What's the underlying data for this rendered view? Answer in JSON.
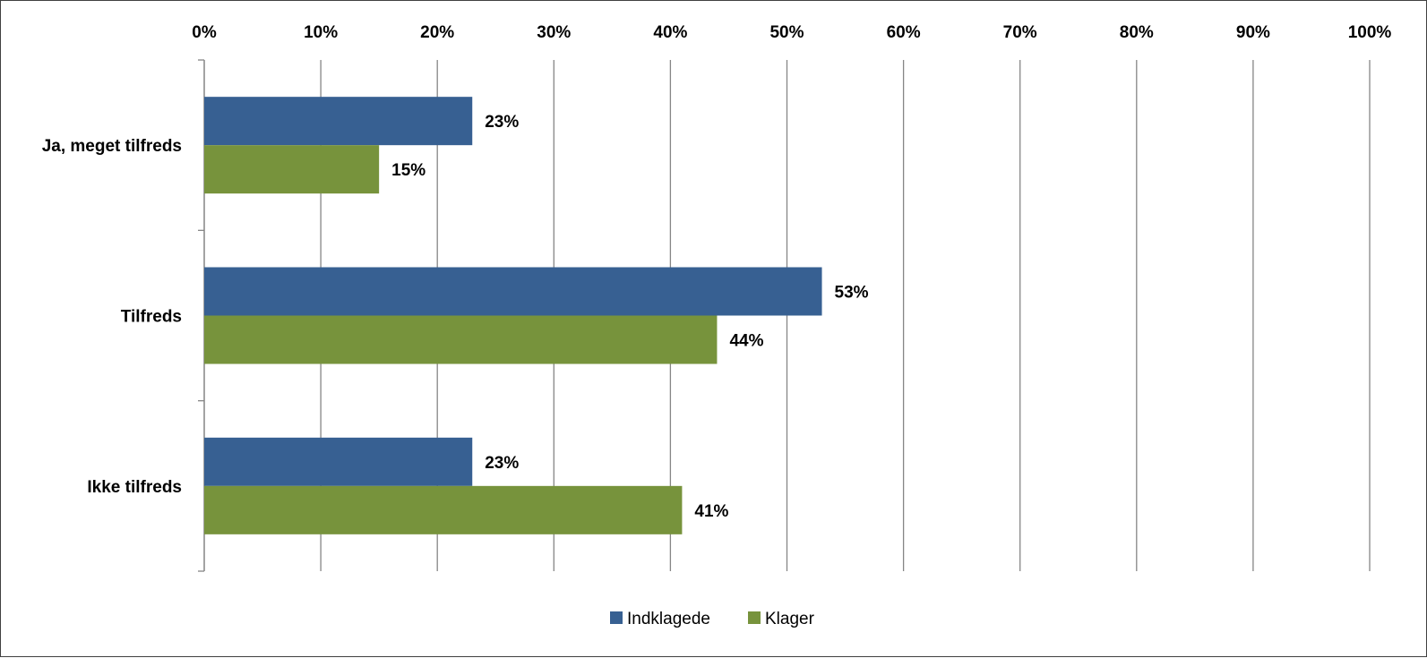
{
  "chart_data": {
    "type": "bar",
    "orientation": "horizontal",
    "categories": [
      "Ja, meget tilfreds",
      "Tilfreds",
      "Ikke tilfreds"
    ],
    "series": [
      {
        "name": "Indklagede",
        "color": "#376092",
        "values": [
          23,
          53,
          23
        ]
      },
      {
        "name": "Klager",
        "color": "#77933C",
        "values": [
          15,
          44,
          41
        ]
      }
    ],
    "data_labels": [
      [
        "23%",
        "53%",
        "23%"
      ],
      [
        "15%",
        "44%",
        "41%"
      ]
    ],
    "xlim": [
      0,
      100
    ],
    "x_ticks": [
      "0%",
      "10%",
      "20%",
      "30%",
      "40%",
      "50%",
      "60%",
      "70%",
      "80%",
      "90%",
      "100%"
    ],
    "x_axis_position": "top",
    "grid": true,
    "legend_position": "bottom",
    "title": "",
    "xlabel": "",
    "ylabel": ""
  }
}
